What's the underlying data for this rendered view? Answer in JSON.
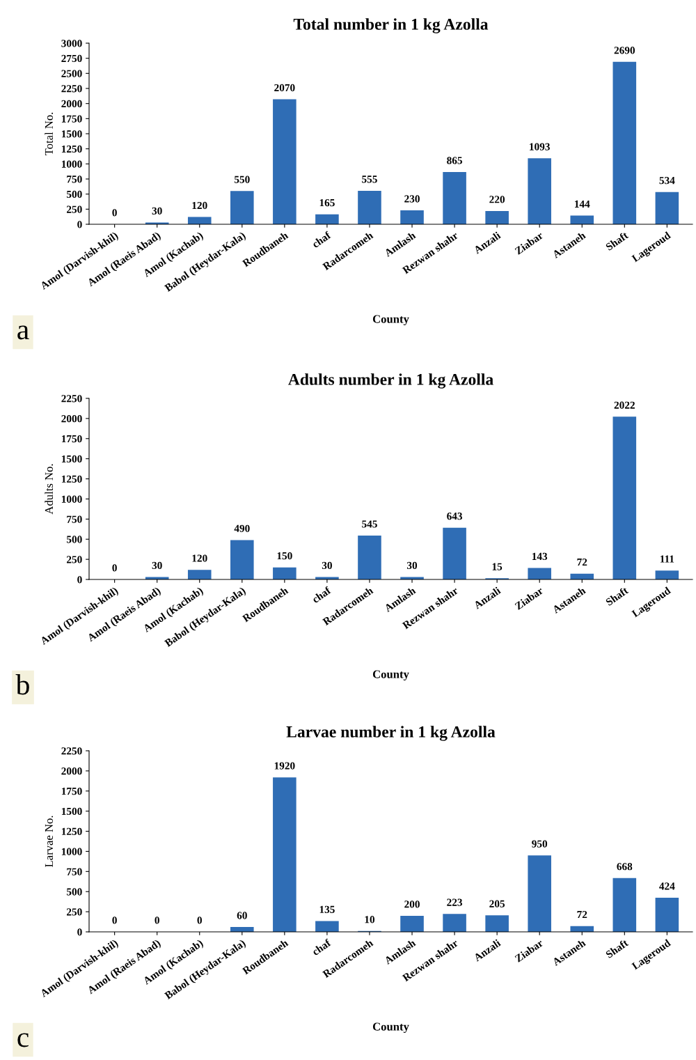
{
  "chart_data": [
    {
      "type": "bar",
      "title": "Total number in 1 kg Azolla",
      "xlabel": "County",
      "ylabel": "Total No.",
      "categories": [
        "Amol (Darvish-khil)",
        "Amol (Raeis Abad)",
        "Amol (Kachab)",
        "Babol (Heydar-Kala)",
        "Roudbaneh",
        "chaf",
        "Radarcomeh",
        "Amlash",
        "Rezwan shahr",
        "Anzali",
        "Ziabar",
        "Astaneh",
        "Shaft",
        "Lageroud"
      ],
      "values": [
        0,
        30,
        120,
        550,
        2070,
        165,
        555,
        230,
        865,
        220,
        1093,
        144,
        2690,
        534
      ],
      "color": "#2f6db5",
      "ylim": [
        0,
        3000
      ],
      "yticks": [
        0,
        250,
        500,
        750,
        1000,
        1250,
        1500,
        1750,
        2000,
        2250,
        2500,
        2750,
        3000
      ],
      "data_labels": true,
      "grid": false,
      "legend": false,
      "annotations": [
        "a"
      ]
    },
    {
      "type": "bar",
      "title": "Adults number in 1 kg Azolla",
      "xlabel": "County",
      "ylabel": "Adults No.",
      "categories": [
        "Amol (Darvish-khil)",
        "Amol (Raeis Abad)",
        "Amol (Kachab)",
        "Babol (Heydar-Kala)",
        "Roudbaneh",
        "chaf",
        "Radarcomeh",
        "Amlash",
        "Rezwan shahr",
        "Anzali",
        "Ziabar",
        "Astaneh",
        "Shaft",
        "Lageroud"
      ],
      "values": [
        0,
        30,
        120,
        490,
        150,
        30,
        545,
        30,
        643,
        15,
        143,
        72,
        2022,
        111
      ],
      "color": "#2f6db5",
      "ylim": [
        0,
        2250
      ],
      "yticks": [
        0,
        250,
        500,
        750,
        1000,
        1250,
        1500,
        1750,
        2000,
        2250
      ],
      "data_labels": true,
      "grid": false,
      "legend": false,
      "annotations": [
        "b"
      ]
    },
    {
      "type": "bar",
      "title": "Larvae number in 1 kg Azolla",
      "xlabel": "County",
      "ylabel": "Larvae No.",
      "categories": [
        "Amol (Darvish-khil)",
        "Amol (Raeis Abad)",
        "Amol (Kachab)",
        "Babol (Heydar-Kala)",
        "Roudbaneh",
        "chaf",
        "Radarcomeh",
        "Amlash",
        "Rezwan shahr",
        "Anzali",
        "Ziabar",
        "Astaneh",
        "Shaft",
        "Lageroud"
      ],
      "values": [
        0,
        0,
        0,
        60,
        1920,
        135,
        10,
        200,
        223,
        205,
        950,
        72,
        668,
        424
      ],
      "color": "#2f6db5",
      "ylim": [
        0,
        2250
      ],
      "yticks": [
        0,
        250,
        500,
        750,
        1000,
        1250,
        1500,
        1750,
        2000,
        2250
      ],
      "data_labels": true,
      "grid": false,
      "legend": false,
      "annotations": [
        "c"
      ]
    }
  ]
}
